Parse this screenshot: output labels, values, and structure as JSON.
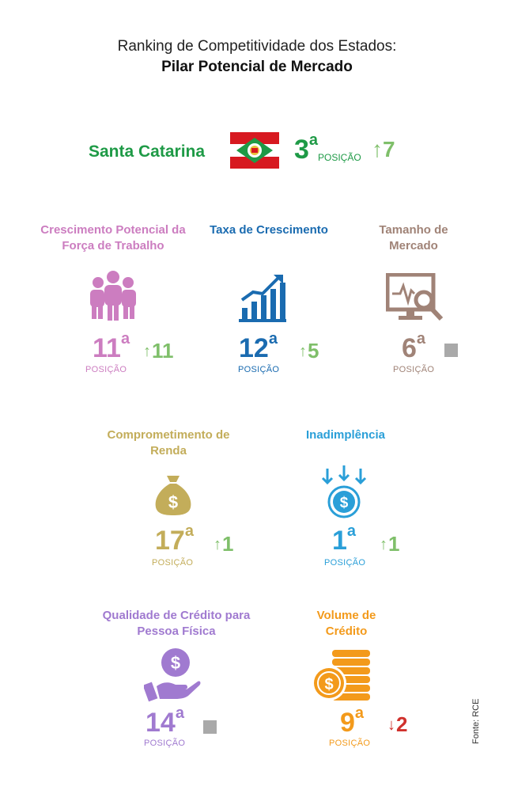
{
  "header": {
    "title_line1": "Ranking de Competitividade dos Estados:",
    "title_line2": "Pilar Potencial de Mercado"
  },
  "state": {
    "name": "Santa Catarina",
    "rank": "3",
    "rank_suffix": "a",
    "position_label": "POSIÇÃO",
    "change_arrow": "↑",
    "change": "7"
  },
  "indicators": [
    {
      "label": "Crescimento Potencial da Força de Trabalho",
      "icon": "people-group-icon",
      "rank": "11",
      "suffix": "a",
      "position_label": "POSIÇÃO",
      "change_arrow": "↑",
      "change": "11"
    },
    {
      "label": "Taxa de Crescimento",
      "icon": "bar-chart-growth-icon",
      "rank": "12",
      "suffix": "a",
      "position_label": "POSIÇÃO",
      "change_arrow": "↑",
      "change": "5"
    },
    {
      "label": "Tamanho de Mercado",
      "icon": "monitor-magnifier-icon",
      "rank": "6",
      "suffix": "a",
      "position_label": "POSIÇÃO",
      "change": "stable"
    },
    {
      "label": "Comprometimento de Renda",
      "icon": "money-bag-icon",
      "rank": "17",
      "suffix": "a",
      "position_label": "POSIÇÃO",
      "change_arrow": "↑",
      "change": "1"
    },
    {
      "label": "Inadimplência",
      "icon": "coin-down-arrows-icon",
      "rank": "1",
      "suffix": "a",
      "position_label": "POSIÇÃO",
      "change_arrow": "↑",
      "change": "1"
    },
    {
      "label": "Qualidade de Crédito para Pessoa Física",
      "icon": "hand-coin-icon",
      "rank": "14",
      "suffix": "a",
      "position_label": "POSIÇÃO",
      "change": "stable"
    },
    {
      "label": "Volume de Crédito",
      "icon": "coin-stack-icon",
      "rank": "9",
      "suffix": "a",
      "position_label": "POSIÇÃO",
      "change_arrow": "↓",
      "change": "2"
    }
  ],
  "source": "Fonte: RCE",
  "colors": {
    "green": "#1e9a46",
    "up": "#7fbf6a",
    "down": "#d0312d",
    "stable": "#a9a9a9"
  }
}
